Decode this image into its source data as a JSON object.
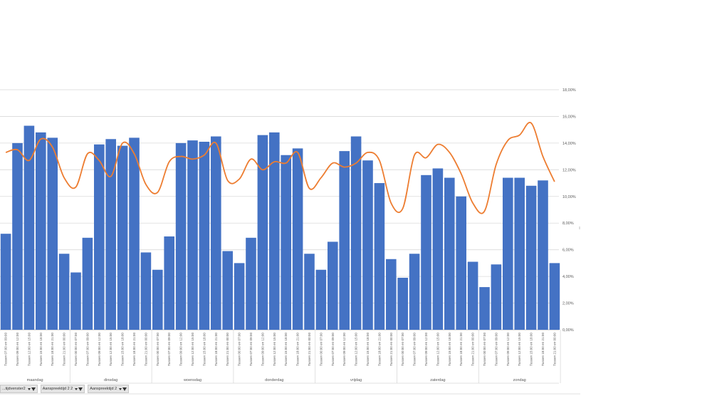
{
  "chart_data": {
    "type": "bar",
    "y2ticks": [
      "0,00%",
      "2,00%",
      "4,00%",
      "6,00%",
      "8,00%",
      "10,00%",
      "12,00%",
      "14,00%",
      "16,00%",
      "18,00%"
    ],
    "y2lim": [
      0,
      18
    ],
    "grid": true,
    "categories": [
      "Tussen 07:00 en 09:00",
      "Tussen 09:00 en 12:00",
      "Tussen 12:00 en 15:00",
      "Tussen 15:00 en 18:00",
      "Tussen 18:00 en 21:00",
      "Tussen 21:00 en 00:00",
      "Tussen 00:00 en 07:00",
      "Tussen 07:00 en 09:00",
      "Tussen 09:00 en 12:00",
      "Tussen 12:00 en 15:00",
      "Tussen 15:00 en 18:00",
      "Tussen 18:00 en 21:00",
      "Tussen 21:00 en 00:00",
      "Tussen 00:00 en 07:00",
      "Tussen 07:00 en 09:00",
      "Tussen 09:00 en 12:00",
      "Tussen 12:00 en 15:00",
      "Tussen 15:00 en 18:00",
      "Tussen 18:00 en 21:00",
      "Tussen 21:00 en 00:00",
      "Tussen 00:00 en 07:00",
      "Tussen 07:00 en 09:00",
      "Tussen 09:00 en 12:00",
      "Tussen 12:00 en 15:00",
      "Tussen 15:00 en 18:00",
      "Tussen 18:00 en 21:00",
      "Tussen 21:00 en 00:00",
      "Tussen 00:00 en 07:00",
      "Tussen 07:00 en 09:00",
      "Tussen 09:00 en 12:00",
      "Tussen 12:00 en 15:00",
      "Tussen 15:00 en 18:00",
      "Tussen 18:00 en 21:00",
      "Tussen 21:00 en 00:00",
      "Tussen 00:00 en 07:00",
      "Tussen 07:00 en 09:00",
      "Tussen 09:00 en 12:00",
      "Tussen 12:00 en 15:00",
      "Tussen 15:00 en 18:00",
      "Tussen 18:00 en 21:00",
      "Tussen 21:00 en 00:00",
      "Tussen 00:00 en 07:00",
      "Tussen 07:00 en 09:00",
      "Tussen 09:00 en 12:00",
      "Tussen 12:00 en 15:00",
      "Tussen 15:00 en 18:00",
      "Tussen 18:00 en 21:00",
      "Tussen 21:00 en 00:00"
    ],
    "groups": [
      {
        "label": "maandag",
        "count": 6
      },
      {
        "label": "dinsdag",
        "count": 7
      },
      {
        "label": "woensdag",
        "count": 7
      },
      {
        "label": "donderdag",
        "count": 7
      },
      {
        "label": "vrijdag",
        "count": 7
      },
      {
        "label": "zaterdag",
        "count": 7
      },
      {
        "label": "zondag",
        "count": 7
      }
    ],
    "series": [
      {
        "type": "bar",
        "color": "#4472C4",
        "axis": "y2",
        "values": [
          7.2,
          14.0,
          15.3,
          14.8,
          14.4,
          5.7,
          4.3,
          6.9,
          13.9,
          14.3,
          13.8,
          14.4,
          5.8,
          4.5,
          7.0,
          14.0,
          14.2,
          14.1,
          14.5,
          5.9,
          5.0,
          6.9,
          14.6,
          14.8,
          13.1,
          13.6,
          5.7,
          4.5,
          6.6,
          13.4,
          14.5,
          12.7,
          11.0,
          5.3,
          3.9,
          5.7,
          11.6,
          12.1,
          11.4,
          10.0,
          5.1,
          3.2,
          4.9,
          11.4,
          11.4,
          10.8,
          11.2,
          5.0
        ]
      },
      {
        "type": "line",
        "color": "#ED7D31",
        "axis": "y2",
        "smooth": true,
        "values": [
          13.3,
          13.5,
          12.7,
          14.3,
          13.7,
          11.4,
          10.7,
          13.2,
          12.7,
          11.5,
          14.0,
          13.2,
          10.9,
          10.3,
          12.6,
          13.0,
          12.8,
          13.1,
          14.0,
          11.2,
          11.3,
          12.8,
          12.0,
          12.6,
          12.5,
          13.3,
          10.6,
          11.4,
          12.5,
          12.2,
          12.5,
          13.3,
          12.7,
          9.5,
          9.1,
          13.1,
          12.9,
          13.9,
          13.3,
          11.7,
          9.5,
          8.9,
          12.4,
          14.2,
          14.6,
          15.5,
          13.0,
          11.1
        ]
      }
    ]
  },
  "filters": [
    {
      "label": "...tijdvenster2",
      "icon": "dropdown-filter-icon"
    },
    {
      "label": "Aanspreektijd 2 2",
      "icon": "dropdown-filter-icon"
    },
    {
      "label": "Aanspreektijd 2",
      "icon": "dropdown-filter-icon"
    }
  ]
}
